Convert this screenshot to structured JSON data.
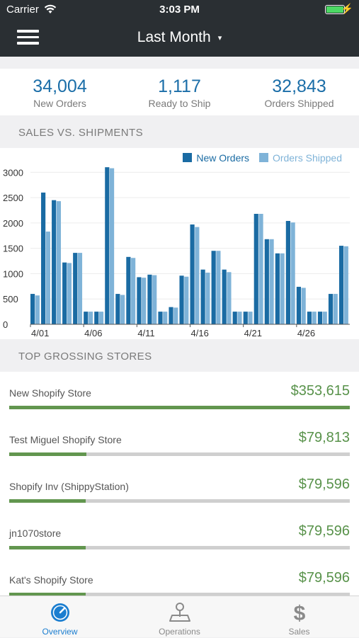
{
  "status_bar": {
    "carrier": "Carrier",
    "time": "3:03 PM"
  },
  "nav": {
    "title": "Last Month",
    "caret": "▾"
  },
  "summary": [
    {
      "value": "34,004",
      "label": "New Orders"
    },
    {
      "value": "1,117",
      "label": "Ready to Ship"
    },
    {
      "value": "32,843",
      "label": "Orders Shipped"
    }
  ],
  "sections": {
    "chart_header": "SALES VS. SHIPMENTS",
    "stores_header": "TOP GROSSING STORES"
  },
  "colors": {
    "new_orders": "#1a6ba3",
    "orders_shipped": "#7fb3d8",
    "store_bar": "#62964f",
    "amount": "#58924a",
    "active_tab": "#1b7ed0"
  },
  "chart_data": {
    "type": "bar",
    "legend_position": "top-right",
    "categories": [
      "4/01",
      "4/02",
      "4/03",
      "4/04",
      "4/05",
      "4/06",
      "4/07",
      "4/08",
      "4/09",
      "4/10",
      "4/11",
      "4/12",
      "4/13",
      "4/14",
      "4/15",
      "4/16",
      "4/17",
      "4/18",
      "4/19",
      "4/20",
      "4/21",
      "4/22",
      "4/23",
      "4/24",
      "4/25",
      "4/26",
      "4/27",
      "4/28",
      "4/29",
      "4/30"
    ],
    "x_tick_labels": [
      "4/01",
      "4/06",
      "4/11",
      "4/16",
      "4/21",
      "4/26"
    ],
    "series": [
      {
        "name": "New Orders",
        "values": [
          600,
          2600,
          2450,
          1220,
          1410,
          250,
          250,
          3100,
          600,
          1330,
          930,
          980,
          250,
          340,
          960,
          1970,
          1080,
          1450,
          1080,
          250,
          250,
          2180,
          1680,
          1400,
          2040,
          740,
          250,
          250,
          600,
          1550
        ]
      },
      {
        "name": "Orders Shipped",
        "values": [
          570,
          1830,
          2430,
          1210,
          1410,
          250,
          250,
          3080,
          580,
          1310,
          920,
          970,
          250,
          330,
          940,
          1920,
          1020,
          1450,
          1030,
          250,
          250,
          2180,
          1680,
          1400,
          2010,
          720,
          250,
          250,
          600,
          1540
        ]
      }
    ],
    "ylim": [
      0,
      3200
    ],
    "y_ticks": [
      0,
      500,
      1000,
      1500,
      2000,
      2500,
      3000
    ],
    "grid": true
  },
  "stores": [
    {
      "name": "New Shopify Store",
      "amount": "$353,615",
      "share": 1.0
    },
    {
      "name": "Test Miguel Shopify Store",
      "amount": "$79,813",
      "share": 0.226
    },
    {
      "name": "Shopify Inv (ShippyStation)",
      "amount": "$79,596",
      "share": 0.225
    },
    {
      "name": "jn1070store",
      "amount": "$79,596",
      "share": 0.225
    },
    {
      "name": "Kat's Shopify Store",
      "amount": "$79,596",
      "share": 0.225
    }
  ],
  "tabs": [
    {
      "label": "Overview",
      "icon": "gauge-icon",
      "active": true
    },
    {
      "label": "Operations",
      "icon": "map-pin-icon",
      "active": false
    },
    {
      "label": "Sales",
      "icon": "dollar-icon",
      "active": false
    }
  ]
}
